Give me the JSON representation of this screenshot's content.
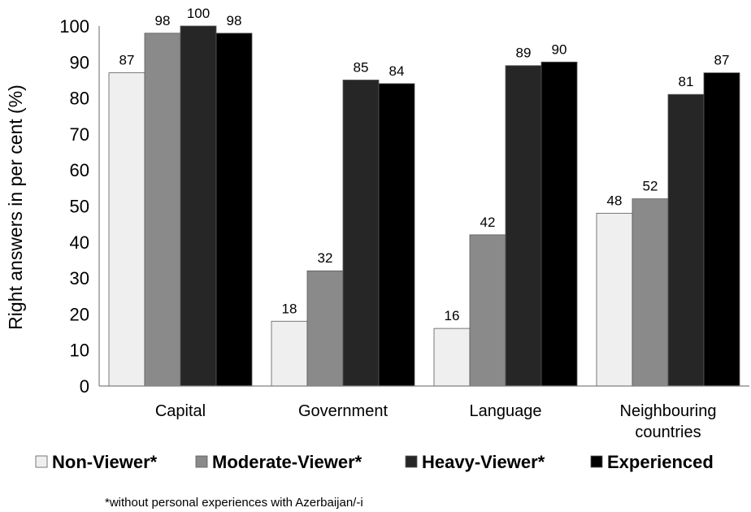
{
  "chart_data": {
    "type": "bar",
    "title": "",
    "xlabel": "",
    "ylabel": "Right  answers in per cent (%)",
    "ylim": [
      0,
      100
    ],
    "yticks": [
      0,
      10,
      20,
      30,
      40,
      50,
      60,
      70,
      80,
      90,
      100
    ],
    "grid": false,
    "legend_position": "bottom",
    "categories": [
      [
        "Capital"
      ],
      [
        "Government"
      ],
      [
        "Language"
      ],
      [
        "Neighbouring",
        "countries"
      ]
    ],
    "series": [
      {
        "name": "Non-Viewer*",
        "color": "#efefef",
        "values": [
          87,
          18,
          16,
          48
        ]
      },
      {
        "name": "Moderate-Viewer*",
        "color": "#8a8a8a",
        "values": [
          98,
          32,
          42,
          52
        ]
      },
      {
        "name": "Heavy-Viewer*",
        "color": "#262626",
        "values": [
          100,
          85,
          89,
          81
        ]
      },
      {
        "name": "Experienced",
        "color": "#000000",
        "values": [
          98,
          84,
          90,
          87
        ]
      }
    ],
    "footnote": "*without personal experiences with Azerbaijan/-i"
  }
}
